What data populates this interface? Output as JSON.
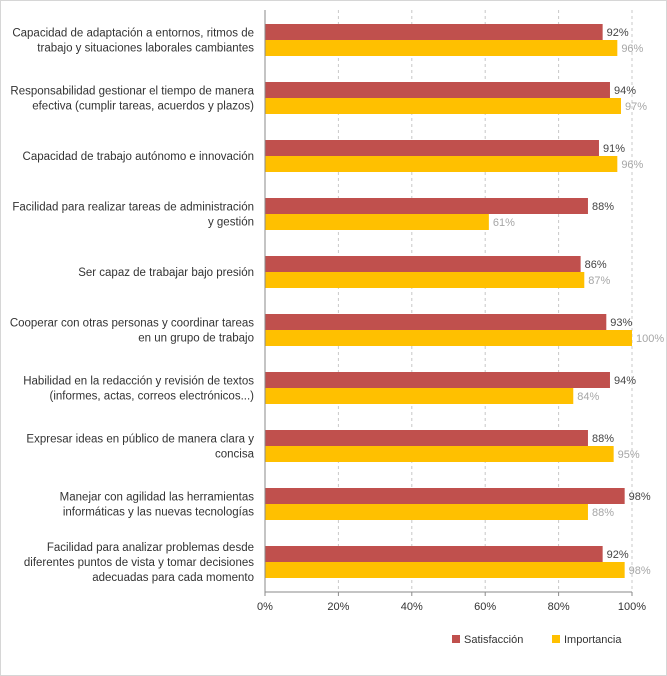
{
  "chart_data": {
    "type": "bar",
    "orientation": "horizontal",
    "categories": [
      [
        "Capacidad de adaptación a entornos, ritmos de",
        "trabajo y situaciones laborales cambiantes"
      ],
      [
        "Responsabilidad gestionar el tiempo de manera",
        "efectiva (cumplir tareas, acuerdos y plazos)"
      ],
      [
        "Capacidad de trabajo autónomo e innovación"
      ],
      [
        "Facilidad para realizar tareas de administración",
        "y gestión"
      ],
      [
        "Ser capaz de trabajar bajo presión"
      ],
      [
        "Cooperar con otras personas y coordinar tareas",
        "en un grupo de trabajo"
      ],
      [
        "Habilidad en la redacción y revisión de textos",
        "(informes, actas, correos electrónicos...)"
      ],
      [
        "Expresar ideas en público de manera clara y",
        "concisa"
      ],
      [
        "Manejar con agilidad las herramientas",
        "informáticas y las nuevas tecnologías"
      ],
      [
        "Facilidad para analizar problemas desde",
        "diferentes puntos de vista y tomar decisiones",
        "adecuadas para cada momento"
      ]
    ],
    "series": [
      {
        "name": "Satisfacción",
        "color": "#c0504d",
        "label_color": "#444444",
        "values": [
          92,
          94,
          91,
          88,
          86,
          93,
          94,
          88,
          98,
          92
        ],
        "labels": [
          "92%",
          "94%",
          "91%",
          "88%",
          "86%",
          "93%",
          "94%",
          "88%",
          "98%",
          "92%"
        ]
      },
      {
        "name": "Importancia",
        "color": "#ffc000",
        "label_color": "#a6a6a6",
        "values": [
          96,
          97,
          96,
          61,
          87,
          100,
          84,
          95,
          88,
          98
        ],
        "labels": [
          "96%",
          "97%",
          "96%",
          "61%",
          "87%",
          "100%",
          "84%",
          "95%",
          "88%",
          "98%"
        ]
      }
    ],
    "xlim": [
      0,
      100
    ],
    "xticks": [
      0,
      20,
      40,
      60,
      80,
      100
    ],
    "xtick_labels": [
      "0%",
      "20%",
      "40%",
      "60%",
      "80%",
      "100%"
    ],
    "gridlines": "vertical-dashed",
    "legend_position": "bottom-right",
    "title": "",
    "xlabel": "",
    "ylabel": ""
  }
}
